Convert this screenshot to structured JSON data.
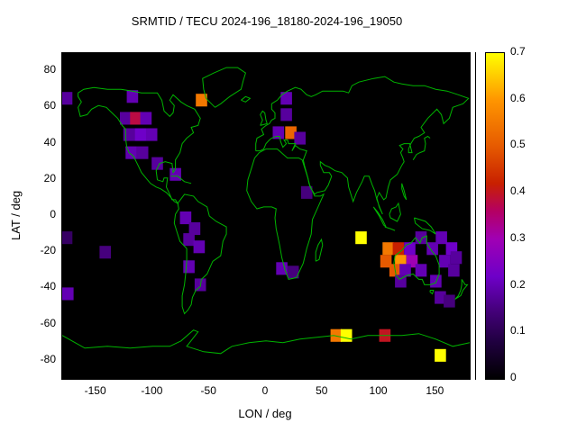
{
  "chart_data": {
    "type": "heatmap",
    "title": "SRMTID / TECU 2024-196_18180-2024-196_19050",
    "xlabel": "LON / deg",
    "ylabel": "LAT / deg",
    "xlim": [
      -180,
      180
    ],
    "ylim": [
      -90,
      90
    ],
    "x_ticks": [
      -150,
      -100,
      -50,
      0,
      50,
      100,
      150
    ],
    "y_ticks": [
      80,
      60,
      40,
      20,
      0,
      -20,
      -40,
      -60,
      -80
    ],
    "map_background": "#000000",
    "coastline_color": "#00b400",
    "grid": false,
    "colorbar": {
      "min": 0,
      "max": 0.7,
      "ticks": [
        0,
        0.1,
        0.2,
        0.3,
        0.4,
        0.5,
        0.6,
        0.7
      ],
      "stops": [
        [
          0.0,
          "#000000"
        ],
        [
          0.08,
          "#200040"
        ],
        [
          0.15,
          "#46007d"
        ],
        [
          0.22,
          "#6e00c8"
        ],
        [
          0.3,
          "#a000b4"
        ],
        [
          0.36,
          "#b40064"
        ],
        [
          0.42,
          "#c82000"
        ],
        [
          0.5,
          "#e65a00"
        ],
        [
          0.6,
          "#ff9600"
        ],
        [
          0.7,
          "#ffff00"
        ]
      ]
    },
    "cell_size_deg": {
      "lon": 10,
      "lat": 7
    },
    "cells": [
      {
        "lon": -176,
        "lat": 65,
        "v": 0.18
      },
      {
        "lon": -118,
        "lat": 66,
        "v": 0.2
      },
      {
        "lon": -57,
        "lat": 64,
        "v": 0.55
      },
      {
        "lon": 18,
        "lat": 65,
        "v": 0.2
      },
      {
        "lon": -124,
        "lat": 54,
        "v": 0.18
      },
      {
        "lon": -115,
        "lat": 54,
        "v": 0.38
      },
      {
        "lon": -106,
        "lat": 54,
        "v": 0.2
      },
      {
        "lon": 18,
        "lat": 56,
        "v": 0.18
      },
      {
        "lon": -121,
        "lat": 45,
        "v": 0.18
      },
      {
        "lon": -111,
        "lat": 45,
        "v": 0.22
      },
      {
        "lon": -101,
        "lat": 45,
        "v": 0.2
      },
      {
        "lon": 11,
        "lat": 46,
        "v": 0.2
      },
      {
        "lon": 22,
        "lat": 46,
        "v": 0.52
      },
      {
        "lon": 30,
        "lat": 43,
        "v": 0.18
      },
      {
        "lon": -119,
        "lat": 35,
        "v": 0.2
      },
      {
        "lon": -109,
        "lat": 35,
        "v": 0.18
      },
      {
        "lon": -96,
        "lat": 29,
        "v": 0.18
      },
      {
        "lon": -80,
        "lat": 23,
        "v": 0.2
      },
      {
        "lon": 36,
        "lat": 13,
        "v": 0.15
      },
      {
        "lon": -71,
        "lat": -1,
        "v": 0.2
      },
      {
        "lon": -63,
        "lat": -7,
        "v": 0.18
      },
      {
        "lon": -68,
        "lat": -13,
        "v": 0.18
      },
      {
        "lon": -59,
        "lat": -17,
        "v": 0.2
      },
      {
        "lon": -68,
        "lat": -28,
        "v": 0.2
      },
      {
        "lon": -58,
        "lat": -38,
        "v": 0.18
      },
      {
        "lon": -176,
        "lat": -12,
        "v": 0.12
      },
      {
        "lon": -142,
        "lat": -20,
        "v": 0.15
      },
      {
        "lon": -175,
        "lat": -43,
        "v": 0.2
      },
      {
        "lon": 14,
        "lat": -29,
        "v": 0.2
      },
      {
        "lon": 24,
        "lat": -31,
        "v": 0.15
      },
      {
        "lon": 84,
        "lat": -12,
        "v": 0.7
      },
      {
        "lon": 137,
        "lat": -12,
        "v": 0.18
      },
      {
        "lon": 155,
        "lat": -12,
        "v": 0.2
      },
      {
        "lon": 108,
        "lat": -18,
        "v": 0.55
      },
      {
        "lon": 117,
        "lat": -18,
        "v": 0.42
      },
      {
        "lon": 127,
        "lat": -18,
        "v": 0.22
      },
      {
        "lon": 147,
        "lat": -18,
        "v": 0.2
      },
      {
        "lon": 164,
        "lat": -18,
        "v": 0.22
      },
      {
        "lon": 106,
        "lat": -25,
        "v": 0.5
      },
      {
        "lon": 119,
        "lat": -25,
        "v": 0.6
      },
      {
        "lon": 129,
        "lat": -25,
        "v": 0.3
      },
      {
        "lon": 158,
        "lat": -25,
        "v": 0.2
      },
      {
        "lon": 168,
        "lat": -23,
        "v": 0.18
      },
      {
        "lon": 114,
        "lat": -30,
        "v": 0.5
      },
      {
        "lon": 123,
        "lat": -30,
        "v": 0.2
      },
      {
        "lon": 137,
        "lat": -30,
        "v": 0.2
      },
      {
        "lon": 166,
        "lat": -30,
        "v": 0.18
      },
      {
        "lon": 119,
        "lat": -36,
        "v": 0.18
      },
      {
        "lon": 150,
        "lat": -36,
        "v": 0.2
      },
      {
        "lon": 154,
        "lat": -45,
        "v": 0.18
      },
      {
        "lon": 162,
        "lat": -47,
        "v": 0.15
      },
      {
        "lon": 62,
        "lat": -66,
        "v": 0.55
      },
      {
        "lon": 71,
        "lat": -66,
        "v": 0.7
      },
      {
        "lon": 105,
        "lat": -66,
        "v": 0.4
      },
      {
        "lon": 154,
        "lat": -77,
        "v": 0.7
      }
    ]
  }
}
